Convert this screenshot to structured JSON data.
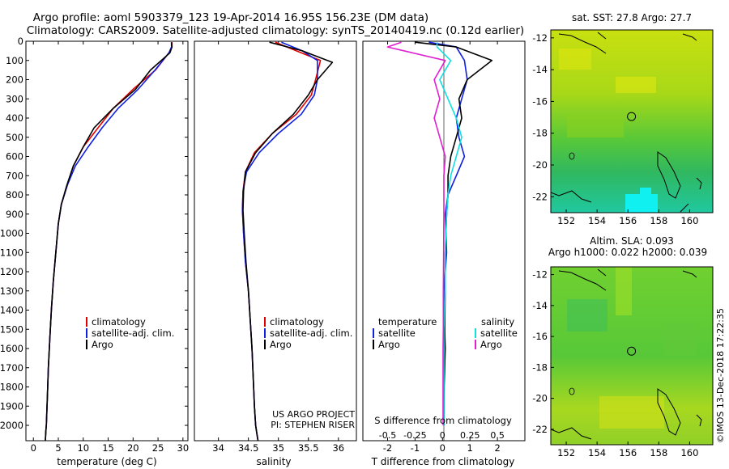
{
  "header": {
    "title_line1": "Argo profile: aoml 5903379_123 19-Apr-2014 16.95S 156.23E (DM data)",
    "title_line2": "Climatology: CARS2009. Satellite-adjusted climatology: synTS_20140419.nc (0.12d earlier)"
  },
  "colors": {
    "red": "#e00000",
    "blue": "#1020e0",
    "black": "#000000",
    "cyan": "#10e0e0",
    "magenta": "#e020d0"
  },
  "chart_data": [
    {
      "type": "line",
      "id": "temperature",
      "xlabel": "temperature (deg C)",
      "ylabel": "",
      "xlim": [
        -1.5,
        31
      ],
      "ylim": [
        2080,
        0
      ],
      "xticks": [
        0,
        5,
        10,
        15,
        20,
        25,
        30
      ],
      "xtick_labels": [
        "0",
        "5",
        "10",
        "15",
        "20",
        "25",
        "30"
      ],
      "yticks": [
        0,
        100,
        200,
        300,
        400,
        500,
        600,
        700,
        800,
        900,
        1000,
        1100,
        1200,
        1300,
        1400,
        1500,
        1600,
        1700,
        1800,
        1900,
        2000
      ],
      "ytick_labels": [
        "0",
        "100",
        "200",
        "300",
        "400",
        "500",
        "600",
        "700",
        "800",
        "900",
        "1000",
        "1100",
        "1200",
        "1300",
        "1400",
        "1500",
        "1600",
        "1700",
        "1800",
        "1900",
        "2000"
      ],
      "legend": {
        "placement": "lower-center",
        "entries": [
          "climatology",
          "satellite-adj. clim.",
          "Argo"
        ]
      },
      "series": [
        {
          "name": "climatology",
          "color": "red",
          "x": [
            27.8,
            27.8,
            27.2,
            24.5,
            20,
            16,
            13,
            10,
            8,
            6.8,
            5.6,
            5,
            4.5,
            4,
            3.6,
            3.3,
            3,
            2.8,
            2.6,
            2.5,
            2.4
          ],
          "y": [
            5,
            30,
            60,
            150,
            250,
            350,
            450,
            550,
            650,
            750,
            850,
            950,
            1100,
            1250,
            1400,
            1550,
            1700,
            1850,
            2000,
            2030,
            2080
          ]
        },
        {
          "name": "satellite-adj. clim.",
          "color": "blue",
          "x": [
            27.7,
            27.7,
            27.2,
            24.4,
            21,
            17,
            13.8,
            11,
            8.4,
            6.8,
            5.6,
            5,
            4.5,
            4,
            3.6,
            3.3,
            3,
            2.8,
            2.6,
            2.5,
            2.4
          ],
          "y": [
            5,
            30,
            60,
            150,
            250,
            350,
            450,
            550,
            650,
            750,
            850,
            950,
            1100,
            1250,
            1400,
            1550,
            1700,
            1850,
            2000,
            2030,
            2080
          ]
        },
        {
          "name": "Argo",
          "color": "black",
          "x": [
            27.7,
            27.8,
            27.4,
            23.5,
            20.5,
            16,
            12.2,
            10,
            8,
            6.7,
            5.6,
            5,
            4.5,
            4,
            3.6,
            3.3,
            3,
            2.8,
            2.6,
            2.5,
            2.4
          ],
          "y": [
            5,
            30,
            60,
            150,
            250,
            350,
            450,
            550,
            650,
            750,
            850,
            950,
            1100,
            1250,
            1400,
            1550,
            1700,
            1850,
            2000,
            2030,
            2080
          ]
        }
      ]
    },
    {
      "type": "line",
      "id": "salinity",
      "xlabel": "salinity",
      "xlim": [
        33.6,
        36.3
      ],
      "ylim": [
        2080,
        0
      ],
      "xticks": [
        34,
        34.5,
        35,
        35.5,
        36
      ],
      "xtick_labels": [
        "34",
        "34.5",
        "35",
        "35.5",
        "36"
      ],
      "legend": {
        "placement": "lower-right",
        "entries": [
          "climatology",
          "satellite-adj. clim.",
          "Argo"
        ]
      },
      "annotations": [
        "US ARGO PROJECT",
        "PI: STEPHEN RISER"
      ],
      "series": [
        {
          "name": "climatology",
          "color": "red",
          "x": [
            34.95,
            35.3,
            35.7,
            35.62,
            35.55,
            35.3,
            34.9,
            34.6,
            34.45,
            34.41,
            34.4,
            34.42,
            34.45,
            34.5,
            34.53,
            34.56,
            34.58,
            34.6,
            34.62,
            34.64,
            34.66
          ],
          "y": [
            5,
            50,
            100,
            200,
            280,
            380,
            480,
            580,
            680,
            780,
            880,
            1000,
            1150,
            1300,
            1450,
            1600,
            1750,
            1900,
            2000,
            2040,
            2080
          ]
        },
        {
          "name": "satellite-adj. clim.",
          "color": "blue",
          "x": [
            35.05,
            35.4,
            35.65,
            35.65,
            35.6,
            35.38,
            35,
            34.68,
            34.47,
            34.41,
            34.4,
            34.42,
            34.45,
            34.5,
            34.53,
            34.56,
            34.58,
            34.6,
            34.62,
            34.64,
            34.66
          ],
          "y": [
            5,
            50,
            100,
            200,
            280,
            380,
            480,
            580,
            680,
            780,
            880,
            1000,
            1150,
            1300,
            1450,
            1600,
            1750,
            1900,
            2000,
            2040,
            2080
          ]
        },
        {
          "name": "Argo",
          "color": "black",
          "x": [
            34.85,
            35.4,
            35.9,
            35.65,
            35.5,
            35.25,
            34.9,
            34.62,
            34.45,
            34.42,
            34.41,
            34.43,
            34.46,
            34.5,
            34.53,
            34.56,
            34.58,
            34.6,
            34.62,
            34.64,
            34.66
          ],
          "y": [
            5,
            50,
            110,
            200,
            280,
            380,
            480,
            580,
            680,
            780,
            880,
            1000,
            1150,
            1300,
            1450,
            1600,
            1750,
            1900,
            2000,
            2040,
            2080
          ]
        }
      ]
    },
    {
      "type": "line",
      "id": "differences",
      "xlabel": "T difference from climatology",
      "xlabel_top": "S difference from climatology",
      "xlim": [
        -2.9,
        3
      ],
      "ylim": [
        2080,
        0
      ],
      "xticks": [
        -2,
        -1,
        0,
        1,
        2
      ],
      "xtick_labels": [
        "-2",
        "-1",
        "0",
        "1",
        "2"
      ],
      "s_ticks": [
        -2,
        -1,
        0,
        1,
        2
      ],
      "s_tick_labels": [
        "-0.5",
        "-0.25",
        "0",
        "0.25",
        "0.5"
      ],
      "legend": {
        "placement": "lower-center",
        "left_title": "temperature",
        "right_title": "salinity",
        "left_entries": [
          "satellite",
          "Argo"
        ],
        "right_entries": [
          "satellite",
          "Argo"
        ]
      },
      "series": [
        {
          "name": "T satellite",
          "color": "blue",
          "x": [
            -0.5,
            0.5,
            0.8,
            0.9,
            0.7,
            0.5,
            0.6,
            0.8,
            0.5,
            0.2,
            0.1,
            0.15,
            0.05,
            0.08,
            0.05,
            0.06,
            0.05,
            0.05,
            0.05
          ],
          "y": [
            5,
            30,
            100,
            200,
            300,
            400,
            500,
            600,
            700,
            800,
            900,
            1100,
            1300,
            1500,
            1600,
            1700,
            1800,
            1900,
            2000
          ]
        },
        {
          "name": "T Argo",
          "color": "black",
          "x": [
            -1,
            0.5,
            1.8,
            0.9,
            0.6,
            0.7,
            0.5,
            0.3,
            0.2,
            0.2,
            0.15,
            0.1,
            0.1,
            0.08,
            0.1,
            0.08,
            0.06,
            0.05,
            0.05
          ],
          "y": [
            5,
            30,
            100,
            200,
            300,
            400,
            500,
            600,
            700,
            800,
            900,
            1100,
            1300,
            1500,
            1600,
            1700,
            1800,
            1900,
            2000
          ]
        },
        {
          "name": "S satellite",
          "color": "cyan",
          "x": [
            -0.2,
            -0.2,
            0.3,
            -0.1,
            0.2,
            0.5,
            0.7,
            0.5,
            0.3,
            0.2,
            0.15,
            0.1,
            0.1,
            0.05,
            0.05,
            0.05,
            0.05,
            0.05,
            0.05
          ],
          "y": [
            5,
            30,
            100,
            200,
            300,
            400,
            500,
            600,
            700,
            800,
            900,
            1100,
            1300,
            1500,
            1600,
            1700,
            1800,
            1900,
            2000
          ]
        },
        {
          "name": "S Argo",
          "color": "magenta",
          "x": [
            -1.5,
            -2,
            0.1,
            -0.3,
            -0.1,
            -0.3,
            -0.1,
            0.1,
            0.05,
            0.05,
            0.05,
            0.04,
            0.03,
            0.03,
            0.02,
            0.02,
            0.02,
            0.02,
            0.02
          ],
          "y": [
            5,
            30,
            100,
            200,
            300,
            400,
            500,
            600,
            700,
            800,
            900,
            1100,
            1300,
            1500,
            1600,
            1700,
            1800,
            1900,
            2000
          ]
        }
      ]
    },
    {
      "type": "heatmap",
      "id": "sst-map",
      "title": "sat. SST: 27.8 Argo: 27.7",
      "xlim": [
        151,
        161.5
      ],
      "ylim": [
        -23,
        -11.5
      ],
      "xticks": [
        152,
        154,
        156,
        158,
        160
      ],
      "xtick_labels": [
        "152",
        "154",
        "156",
        "158",
        "160"
      ],
      "yticks": [
        -12,
        -14,
        -16,
        -18,
        -20,
        -22
      ],
      "ytick_labels": [
        "-12",
        "-14",
        "-16",
        "-18",
        "-20",
        "-22"
      ],
      "marker": {
        "lon": 156.23,
        "lat": -16.95
      }
    },
    {
      "type": "heatmap",
      "id": "sla-map",
      "title_line1": "Altim. SLA: 0.093",
      "title_line2": "Argo h1000: 0.022 h2000: 0.039",
      "xlim": [
        151,
        161.5
      ],
      "ylim": [
        -23,
        -11.5
      ],
      "xticks": [
        152,
        154,
        156,
        158,
        160
      ],
      "xtick_labels": [
        "152",
        "154",
        "156",
        "158",
        "160"
      ],
      "yticks": [
        -12,
        -14,
        -16,
        -18,
        -20,
        -22
      ],
      "ytick_labels": [
        "-12",
        "-14",
        "-16",
        "-18",
        "-20",
        "-22"
      ],
      "marker": {
        "lon": 156.23,
        "lat": -16.95
      }
    }
  ],
  "footer": {
    "imprint": "©IMOS 13-Dec-2018 17:22:35"
  }
}
